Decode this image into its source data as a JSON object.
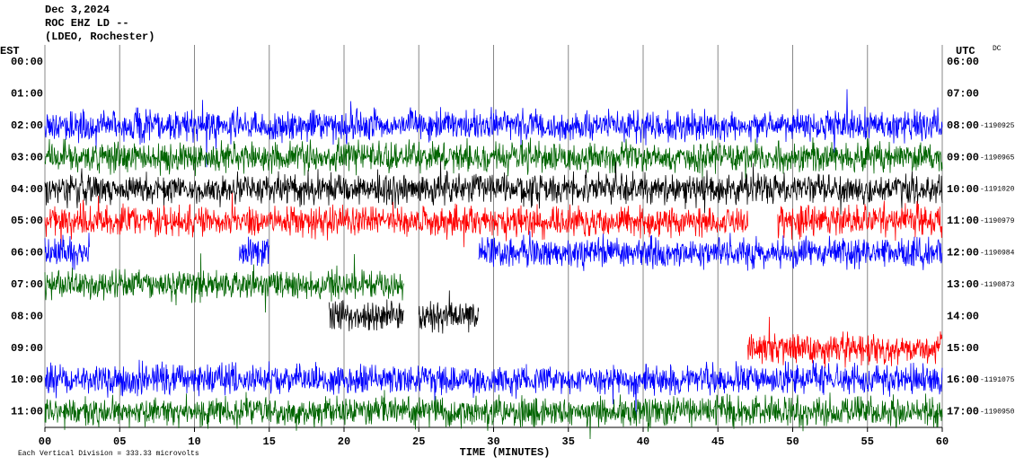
{
  "chart_data": {
    "type": "seismogram",
    "title_lines": [
      "Dec 3,2024",
      "ROC EHZ LD --",
      "(LDEO, Rochester)"
    ],
    "left_axis_label": "EST",
    "right_axis_label": "UTC",
    "corner_note": "DC",
    "x_label": "TIME (MINUTES)",
    "scale_note": "Each Vertical Division =  333.33 microvolts",
    "xlim": [
      0,
      60
    ],
    "xticks": [
      {
        "value": 0,
        "label": "00"
      },
      {
        "value": 5,
        "label": "05"
      },
      10,
      15,
      20,
      25,
      30,
      35,
      40,
      45,
      50,
      55,
      60
    ],
    "rows": [
      {
        "est": "00:00",
        "utc": "06:00"
      },
      {
        "est": "01:00",
        "utc": "07:00"
      },
      {
        "est": "02:00",
        "utc": "08:00",
        "offset": -1190925,
        "trace": {
          "color": "#0000ff",
          "segments": [
            [
              0,
              60
            ]
          ]
        }
      },
      {
        "est": "03:00",
        "utc": "09:00",
        "offset": -1190965,
        "trace": {
          "color": "#006400",
          "segments": [
            [
              0,
              60
            ]
          ]
        }
      },
      {
        "est": "04:00",
        "utc": "10:00",
        "offset": -1191020,
        "trace": {
          "color": "#000000",
          "segments": [
            [
              0,
              60
            ]
          ]
        }
      },
      {
        "est": "05:00",
        "utc": "11:00",
        "offset": -1190979,
        "trace": {
          "color": "#ff0000",
          "segments": [
            [
              0,
              47
            ],
            [
              49,
              60
            ]
          ]
        }
      },
      {
        "est": "06:00",
        "utc": "12:00",
        "offset": -1190984,
        "trace": {
          "color": "#0000ff",
          "segments": [
            [
              0,
              3
            ],
            [
              13,
              15
            ],
            [
              29,
              60
            ]
          ]
        }
      },
      {
        "est": "07:00",
        "utc": "13:00",
        "offset": -1190873,
        "trace": {
          "color": "#006400",
          "segments": [
            [
              0,
              24
            ]
          ]
        }
      },
      {
        "est": "08:00",
        "utc": "14:00",
        "trace": {
          "color": "#000000",
          "segments": [
            [
              19,
              24
            ],
            [
              25,
              29
            ]
          ]
        }
      },
      {
        "est": "09:00",
        "utc": "15:00",
        "trace": {
          "color": "#ff0000",
          "segments": [
            [
              47,
              60
            ]
          ]
        }
      },
      {
        "est": "10:00",
        "utc": "16:00",
        "offset": -1191075,
        "trace": {
          "color": "#0000ff",
          "segments": [
            [
              0,
              60
            ]
          ]
        }
      },
      {
        "est": "11:00",
        "utc": "17:00",
        "offset": -1190950,
        "trace": {
          "color": "#006400",
          "segments": [
            [
              0,
              60
            ]
          ]
        }
      }
    ]
  }
}
